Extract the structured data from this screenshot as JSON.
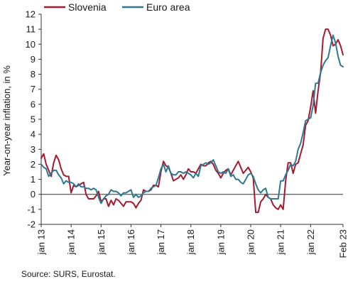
{
  "source": "Source: SURS, Eurostat.",
  "chart_data": {
    "type": "line",
    "ylabel": "Year-on-year inflation, in %",
    "xlabel": "",
    "ylim": [
      -2,
      12
    ],
    "yticks": [
      -2,
      -1,
      0,
      1,
      2,
      3,
      4,
      5,
      6,
      7,
      8,
      9,
      10,
      11,
      12
    ],
    "x_start": "2013-01",
    "x_end": "2023-02",
    "xticks": [
      {
        "label": "jan 13",
        "month_index": 0
      },
      {
        "label": "jan 14",
        "month_index": 12
      },
      {
        "label": "jan 15",
        "month_index": 24
      },
      {
        "label": "jan 16",
        "month_index": 36
      },
      {
        "label": "jan 17",
        "month_index": 48
      },
      {
        "label": "jan 18",
        "month_index": 60
      },
      {
        "label": "jan 19",
        "month_index": 72
      },
      {
        "label": "jan 20",
        "month_index": 84
      },
      {
        "label": "jan 21",
        "month_index": 96
      },
      {
        "label": "jan 22",
        "month_index": 108
      },
      {
        "label": "Feb 23",
        "month_index": 121
      }
    ],
    "legend_position": "top",
    "series": [
      {
        "name": "Slovenia",
        "color": "#a6192e",
        "values": [
          2.4,
          2.7,
          2.0,
          1.6,
          1.2,
          2.1,
          2.6,
          2.3,
          1.7,
          1.3,
          1.2,
          1.2,
          0.1,
          0.6,
          0.5,
          0.6,
          0.7,
          0.8,
          0.0,
          -0.3,
          -0.3,
          -0.3,
          -0.1,
          0.2,
          -0.5,
          -0.3,
          -0.3,
          -0.8,
          -0.4,
          -0.7,
          -0.3,
          -0.4,
          -0.6,
          -0.8,
          -0.5,
          -0.5,
          -0.5,
          -0.6,
          -0.9,
          -0.6,
          -0.4,
          0.3,
          0.2,
          0.2,
          0.3,
          0.6,
          0.6,
          0.5,
          1.5,
          2.2,
          1.9,
          1.8,
          1.4,
          0.9,
          1.0,
          1.1,
          1.3,
          1.0,
          1.3,
          1.7,
          1.5,
          1.5,
          1.4,
          1.7,
          2.0,
          1.9,
          1.9,
          2.1,
          2.2,
          2.0,
          1.6,
          1.4,
          1.1,
          1.4,
          1.6,
          1.7,
          1.3,
          1.6,
          1.9,
          2.2,
          1.8,
          1.4,
          1.6,
          1.8,
          1.5,
          1.1,
          -1.2,
          -1.2,
          -0.5,
          -0.3,
          0.0,
          -0.2,
          -0.3,
          -0.7,
          -0.9,
          -1.0,
          -0.7,
          -1.0,
          0.9,
          2.1,
          2.1,
          1.4,
          2.0,
          2.1,
          2.7,
          3.3,
          4.6,
          4.9,
          5.8,
          6.9,
          5.4,
          6.9,
          8.1,
          10.4,
          11.0,
          11.0,
          10.6,
          9.9,
          10.0,
          10.3,
          9.9,
          9.3
        ]
      },
      {
        "name": "Euro area",
        "color": "#2e7891",
        "values": [
          2.0,
          1.8,
          1.7,
          1.2,
          1.4,
          1.6,
          1.6,
          1.3,
          1.1,
          0.7,
          0.9,
          0.8,
          0.8,
          0.7,
          0.5,
          0.7,
          0.5,
          0.5,
          0.4,
          0.4,
          0.3,
          0.4,
          0.3,
          -0.2,
          -0.6,
          -0.3,
          -0.1,
          0.0,
          0.3,
          0.2,
          0.2,
          0.1,
          -0.1,
          0.1,
          0.1,
          0.2,
          0.3,
          -0.2,
          0.0,
          -0.2,
          -0.1,
          0.1,
          0.2,
          0.2,
          0.4,
          0.5,
          0.6,
          1.1,
          1.7,
          2.0,
          1.5,
          1.9,
          1.4,
          1.3,
          1.3,
          1.5,
          1.5,
          1.4,
          1.5,
          1.4,
          1.3,
          1.1,
          1.4,
          1.2,
          1.9,
          2.0,
          2.1,
          2.0,
          2.1,
          2.3,
          1.9,
          1.5,
          1.4,
          1.5,
          1.4,
          1.7,
          1.2,
          1.3,
          1.0,
          1.0,
          0.8,
          0.7,
          1.0,
          1.3,
          1.4,
          1.2,
          0.7,
          0.3,
          0.1,
          0.3,
          0.4,
          -0.2,
          -0.3,
          -0.3,
          -0.3,
          -0.3,
          0.9,
          0.9,
          1.3,
          1.6,
          2.0,
          1.9,
          2.2,
          3.0,
          3.4,
          4.1,
          4.9,
          5.0,
          5.1,
          5.9,
          7.4,
          7.4,
          8.1,
          8.6,
          8.9,
          9.1,
          9.9,
          10.6,
          10.1,
          9.2,
          8.6,
          8.5
        ]
      }
    ]
  }
}
